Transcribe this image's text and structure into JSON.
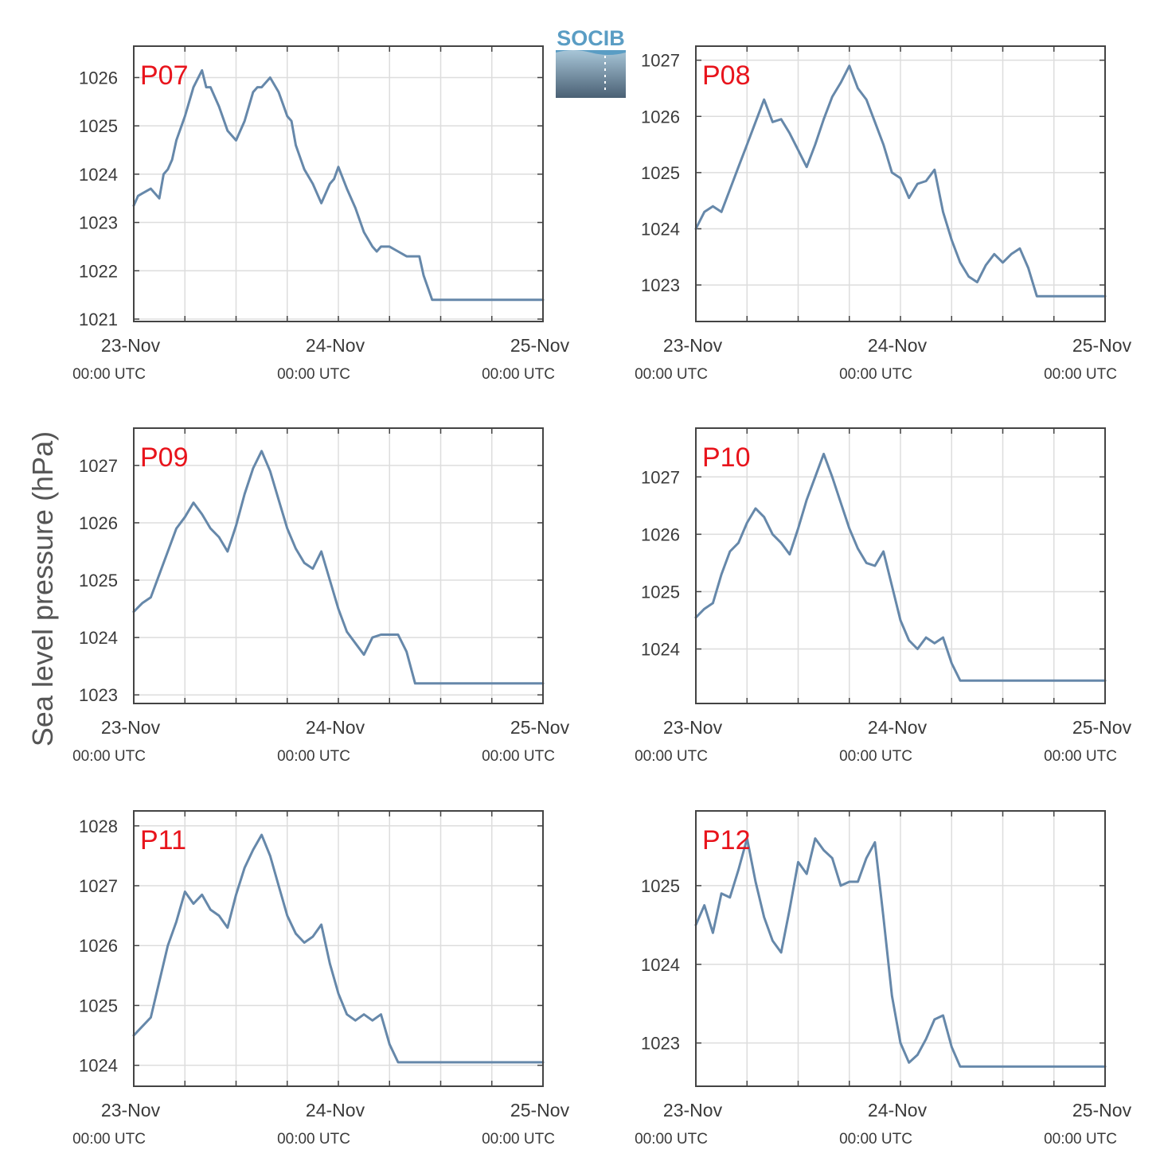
{
  "figure": {
    "ylabel": "Sea level pressure (hPa)",
    "logo_text": "SOCIB",
    "colors": {
      "line": "#6688aa",
      "panel_label": "#e8141c",
      "grid": "#dddddd",
      "axes": "#444444",
      "logo_top": "#5a9dc4",
      "logo_bottom": "#4a6074"
    },
    "x_ticks": [
      {
        "date": "23-Nov",
        "time": "00:00 UTC",
        "hour": 0
      },
      {
        "date": "24-Nov",
        "time": "00:00 UTC",
        "hour": 24
      },
      {
        "date": "25-Nov",
        "time": "00:00 UTC",
        "hour": 48
      }
    ]
  },
  "chart_data": [
    {
      "type": "line",
      "title": "P07",
      "xlabel": "",
      "ylabel": "Sea level pressure (hPa)",
      "x_range": [
        "23-Nov 00:00 UTC",
        "25-Nov 00:00 UTC"
      ],
      "x_unit": "hours since 23-Nov 00:00 UTC",
      "ylim": [
        1020.95,
        1026.65
      ],
      "yticks": [
        1021,
        1022,
        1023,
        1024,
        1025,
        1026
      ],
      "grid": true,
      "x": [
        0,
        0.5,
        1,
        2,
        3,
        3.5,
        4,
        4.5,
        5,
        6,
        7,
        8,
        8.5,
        9,
        10,
        11,
        12,
        13,
        14,
        14.5,
        15,
        16,
        17,
        18,
        18.5,
        19,
        20,
        21,
        22,
        23,
        23.5,
        24,
        25,
        26,
        27,
        28,
        28.5,
        29,
        30,
        31,
        32,
        33,
        33.5,
        34,
        35,
        36,
        37,
        38,
        38.5,
        39,
        40,
        41,
        42,
        43,
        44,
        45,
        46,
        47,
        48
      ],
      "y": [
        1023.35,
        1023.55,
        1023.6,
        1023.7,
        1023.5,
        1024,
        1024.1,
        1024.3,
        1024.7,
        1025.2,
        1025.8,
        1026.15,
        1025.8,
        1025.8,
        1025.4,
        1024.9,
        1024.7,
        1025.1,
        1025.7,
        1025.8,
        1025.8,
        1026,
        1025.7,
        1025.2,
        1025.1,
        1024.6,
        1024.1,
        1023.8,
        1023.4,
        1023.8,
        1023.9,
        1024.15,
        1023.7,
        1023.3,
        1022.8,
        1022.5,
        1022.4,
        1022.5,
        1022.5,
        1022.4,
        1022.3,
        1022.3,
        1022.3,
        1021.9,
        1021.4,
        1021.4,
        1021.4,
        1021.4,
        1021.4,
        1021.4,
        1021.4,
        1021.4,
        1021.4,
        1021.4,
        1021.4,
        1021.4,
        1021.4,
        1021.4,
        1021.4
      ]
    },
    {
      "type": "line",
      "title": "P08",
      "xlabel": "",
      "ylabel": "Sea level pressure (hPa)",
      "x_range": [
        "23-Nov 00:00 UTC",
        "25-Nov 00:00 UTC"
      ],
      "x_unit": "hours since 23-Nov 00:00 UTC",
      "ylim": [
        1022.35,
        1027.25
      ],
      "yticks": [
        1023,
        1024,
        1025,
        1026,
        1027
      ],
      "grid": true,
      "x": [
        0,
        1,
        2,
        3,
        4,
        5,
        6,
        7,
        8,
        9,
        10,
        11,
        12,
        13,
        14,
        15,
        16,
        17,
        18,
        19,
        20,
        21,
        22,
        23,
        24,
        25,
        26,
        27,
        28,
        29,
        30,
        31,
        32,
        33,
        34,
        35,
        36,
        37,
        38,
        39,
        40,
        41,
        42,
        43,
        44,
        45,
        46,
        47,
        48
      ],
      "y": [
        1024,
        1024.3,
        1024.4,
        1024.3,
        1024.7,
        1025.1,
        1025.5,
        1025.9,
        1026.3,
        1025.9,
        1025.95,
        1025.7,
        1025.4,
        1025.1,
        1025.5,
        1025.95,
        1026.35,
        1026.6,
        1026.9,
        1026.5,
        1026.3,
        1025.9,
        1025.5,
        1025.0,
        1024.9,
        1024.55,
        1024.8,
        1024.85,
        1025.05,
        1024.3,
        1023.8,
        1023.4,
        1023.15,
        1023.05,
        1023.35,
        1023.55,
        1023.4,
        1023.55,
        1023.65,
        1023.3,
        1022.8,
        1022.8,
        1022.8,
        1022.8,
        1022.8,
        1022.8,
        1022.8,
        1022.8,
        1022.8
      ]
    },
    {
      "type": "line",
      "title": "P09",
      "xlabel": "",
      "ylabel": "Sea level pressure (hPa)",
      "x_range": [
        "23-Nov 00:00 UTC",
        "25-Nov 00:00 UTC"
      ],
      "x_unit": "hours since 23-Nov 00:00 UTC",
      "ylim": [
        1022.85,
        1027.65
      ],
      "yticks": [
        1023,
        1024,
        1025,
        1026,
        1027
      ],
      "grid": true,
      "x": [
        0,
        1,
        2,
        3,
        4,
        5,
        6,
        7,
        8,
        9,
        10,
        11,
        12,
        13,
        14,
        15,
        16,
        17,
        18,
        19,
        20,
        21,
        22,
        23,
        24,
        25,
        26,
        27,
        28,
        29,
        30,
        31,
        32,
        33,
        34,
        35,
        36,
        37,
        38,
        39,
        40,
        41,
        42,
        43,
        44,
        45,
        46,
        47,
        48
      ],
      "y": [
        1024.45,
        1024.6,
        1024.7,
        1025.1,
        1025.5,
        1025.9,
        1026.1,
        1026.35,
        1026.15,
        1025.9,
        1025.75,
        1025.5,
        1025.95,
        1026.5,
        1026.95,
        1027.25,
        1026.9,
        1026.4,
        1025.9,
        1025.55,
        1025.3,
        1025.2,
        1025.5,
        1025.0,
        1024.5,
        1024.1,
        1023.9,
        1023.7,
        1024.0,
        1024.05,
        1024.05,
        1024.05,
        1023.75,
        1023.2,
        1023.2,
        1023.2,
        1023.2,
        1023.2,
        1023.2,
        1023.2,
        1023.2,
        1023.2,
        1023.2,
        1023.2,
        1023.2,
        1023.2,
        1023.2,
        1023.2,
        1023.2
      ]
    },
    {
      "type": "line",
      "title": "P10",
      "xlabel": "",
      "ylabel": "Sea level pressure (hPa)",
      "x_range": [
        "23-Nov 00:00 UTC",
        "25-Nov 00:00 UTC"
      ],
      "x_unit": "hours since 23-Nov 00:00 UTC",
      "ylim": [
        1023.05,
        1027.85
      ],
      "yticks": [
        1024,
        1025,
        1026,
        1027
      ],
      "grid": true,
      "x": [
        0,
        1,
        2,
        3,
        4,
        5,
        6,
        7,
        8,
        9,
        10,
        11,
        12,
        13,
        14,
        15,
        16,
        17,
        18,
        19,
        20,
        21,
        22,
        23,
        24,
        25,
        26,
        27,
        28,
        29,
        30,
        31,
        32,
        33,
        34,
        35,
        36,
        37,
        38,
        39,
        40,
        41,
        42,
        43,
        44,
        45,
        46,
        47,
        48
      ],
      "y": [
        1024.55,
        1024.7,
        1024.8,
        1025.3,
        1025.7,
        1025.85,
        1026.2,
        1026.45,
        1026.3,
        1026.0,
        1025.85,
        1025.65,
        1026.1,
        1026.6,
        1027.0,
        1027.4,
        1027.0,
        1026.55,
        1026.1,
        1025.75,
        1025.5,
        1025.45,
        1025.7,
        1025.1,
        1024.5,
        1024.15,
        1024.0,
        1024.2,
        1024.1,
        1024.2,
        1023.75,
        1023.45,
        1023.45,
        1023.45,
        1023.45,
        1023.45,
        1023.45,
        1023.45,
        1023.45,
        1023.45,
        1023.45,
        1023.45,
        1023.45,
        1023.45,
        1023.45,
        1023.45,
        1023.45,
        1023.45,
        1023.45
      ]
    },
    {
      "type": "line",
      "title": "P11",
      "xlabel": "",
      "ylabel": "Sea level pressure (hPa)",
      "x_range": [
        "23-Nov 00:00 UTC",
        "25-Nov 00:00 UTC"
      ],
      "x_unit": "hours since 23-Nov 00:00 UTC",
      "ylim": [
        1023.65,
        1028.25
      ],
      "yticks": [
        1024,
        1025,
        1026,
        1027,
        1028
      ],
      "grid": true,
      "x": [
        0,
        1,
        2,
        3,
        4,
        5,
        6,
        7,
        8,
        9,
        10,
        11,
        12,
        13,
        14,
        15,
        16,
        17,
        18,
        19,
        20,
        21,
        22,
        23,
        24,
        25,
        26,
        27,
        28,
        29,
        30,
        31,
        32,
        33,
        34,
        35,
        36,
        37,
        38,
        39,
        40,
        41,
        42,
        43,
        44,
        45,
        46,
        47,
        48
      ],
      "y": [
        1024.5,
        1024.65,
        1024.8,
        1025.4,
        1026.0,
        1026.4,
        1026.9,
        1026.7,
        1026.85,
        1026.6,
        1026.5,
        1026.3,
        1026.85,
        1027.3,
        1027.6,
        1027.85,
        1027.5,
        1027.0,
        1026.5,
        1026.2,
        1026.05,
        1026.15,
        1026.35,
        1025.7,
        1025.2,
        1024.85,
        1024.75,
        1024.85,
        1024.75,
        1024.85,
        1024.35,
        1024.05,
        1024.05,
        1024.05,
        1024.05,
        1024.05,
        1024.05,
        1024.05,
        1024.05,
        1024.05,
        1024.05,
        1024.05,
        1024.05,
        1024.05,
        1024.05,
        1024.05,
        1024.05,
        1024.05,
        1024.05
      ]
    },
    {
      "type": "line",
      "title": "P12",
      "xlabel": "",
      "ylabel": "Sea level pressure (hPa)",
      "x_range": [
        "23-Nov 00:00 UTC",
        "25-Nov 00:00 UTC"
      ],
      "x_unit": "hours since 23-Nov 00:00 UTC",
      "ylim": [
        1022.45,
        1025.95
      ],
      "yticks": [
        1023,
        1024,
        1025
      ],
      "grid": true,
      "x": [
        0,
        1,
        2,
        3,
        4,
        5,
        6,
        7,
        8,
        9,
        10,
        11,
        12,
        13,
        14,
        15,
        16,
        17,
        18,
        19,
        20,
        21,
        22,
        23,
        24,
        25,
        26,
        27,
        28,
        29,
        30,
        31,
        32,
        33,
        34,
        35,
        36,
        37,
        38,
        39,
        40,
        41,
        42,
        43,
        44,
        45,
        46,
        47,
        48
      ],
      "y": [
        1024.5,
        1024.75,
        1024.4,
        1024.9,
        1024.85,
        1025.2,
        1025.6,
        1025.05,
        1024.6,
        1024.3,
        1024.15,
        1024.7,
        1025.3,
        1025.15,
        1025.6,
        1025.45,
        1025.35,
        1025.0,
        1025.05,
        1025.05,
        1025.35,
        1025.55,
        1024.6,
        1023.6,
        1023.0,
        1022.75,
        1022.85,
        1023.05,
        1023.3,
        1023.35,
        1022.95,
        1022.7,
        1022.7,
        1022.7,
        1022.7,
        1022.7,
        1022.7,
        1022.7,
        1022.7,
        1022.7,
        1022.7,
        1022.7,
        1022.7,
        1022.7,
        1022.7,
        1022.7,
        1022.7,
        1022.7,
        1022.7
      ]
    }
  ]
}
